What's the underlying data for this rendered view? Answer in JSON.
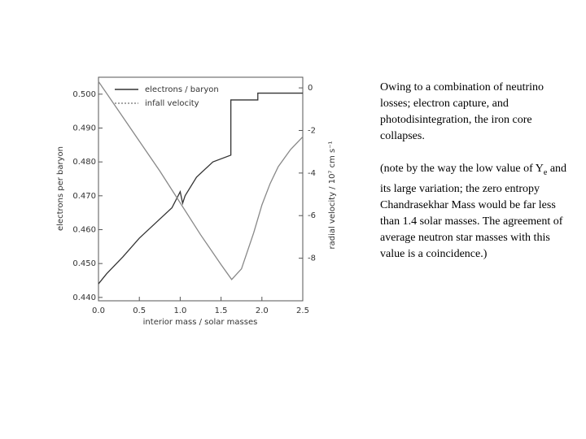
{
  "chart_data": {
    "type": "line",
    "x_label": "interior mass / solar masses",
    "y_label": "electrons per baryon",
    "y2_label": "radial velocity / 10⁷ cm s⁻¹",
    "xlim": [
      0,
      2.5
    ],
    "xticks": [
      {
        "value": 0,
        "label": "0.0"
      },
      0.5,
      {
        "value": 1,
        "label": "1.0"
      },
      1.5,
      {
        "value": 2,
        "label": "2.0"
      },
      2.5
    ],
    "ylim": [
      0.439,
      0.505
    ],
    "yticks": [
      {
        "value": 0.44,
        "label": "0.440"
      },
      {
        "value": 0.45,
        "label": "0.450"
      },
      {
        "value": 0.46,
        "label": "0.460"
      },
      {
        "value": 0.47,
        "label": "0.470"
      },
      {
        "value": 0.48,
        "label": "0.480"
      },
      {
        "value": 0.49,
        "label": "0.490"
      },
      {
        "value": 0.5,
        "label": "0.500"
      }
    ],
    "y2lim": [
      -10,
      0.5
    ],
    "y2ticks": [
      0,
      -2,
      -4,
      -6,
      -8
    ],
    "legend": "upper left",
    "series": [
      {
        "name": "electrons / baryon",
        "color": "#333333",
        "dash": "none",
        "x": [
          0,
          0.1,
          0.3,
          0.5,
          0.7,
          0.9,
          1.0,
          1.03,
          1.06,
          1.2,
          1.4,
          1.62,
          1.62,
          1.95,
          1.95,
          2.5
        ],
        "values": [
          0.444,
          0.447,
          0.452,
          0.4575,
          0.462,
          0.4665,
          0.4712,
          0.4678,
          0.47,
          0.4755,
          0.48,
          0.482,
          0.4983,
          0.4983,
          0.5003,
          0.5003
        ]
      },
      {
        "name": "infall velocity",
        "color": "#888888",
        "dash": "2,2",
        "axis": "y2",
        "x": [
          0,
          0.25,
          0.5,
          0.75,
          1.0,
          1.25,
          1.5,
          1.63,
          1.75,
          1.9,
          2.0,
          2.1,
          2.2,
          2.35,
          2.5
        ],
        "values": [
          0.3,
          -1.1,
          -2.5,
          -3.9,
          -5.4,
          -6.9,
          -8.3,
          -9.0,
          -8.5,
          -6.8,
          -5.5,
          -4.5,
          -3.7,
          -2.9,
          -2.3
        ]
      }
    ]
  },
  "text": {
    "paragraph_1": "Owing to a combination of neutrino losses; electron capture, and photodisintegration, the iron core collapses.",
    "paragraph_2": {
      "before": "(note by the way the low value of Y",
      "subscript": "e",
      "after": " and its large variation; the zero entropy Chandrasekhar Mass would be far less than 1.4 solar masses. The agreement of average neutron star masses with this value is a coincidence.)"
    }
  }
}
